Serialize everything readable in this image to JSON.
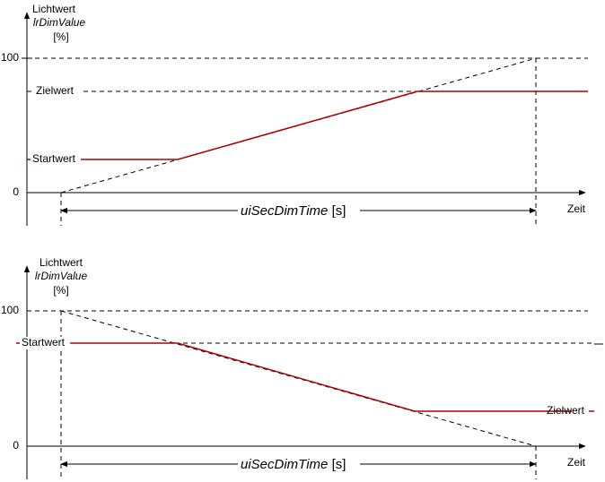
{
  "diagrams": [
    {
      "y_axis_label": "Lichtwert",
      "y_axis_variable": "lrDimValue",
      "y_axis_unit": "[%]",
      "level_max": "100",
      "level_zero": "0",
      "start_label": "Startwert",
      "target_label": "Zielwert",
      "duration_label": "uiSecDimTime",
      "duration_unit": "[s]",
      "x_axis_label": "Zeit"
    },
    {
      "y_axis_label": "Lichtwert",
      "y_axis_variable": "lrDimValue",
      "y_axis_unit": "[%]",
      "level_max": "100",
      "level_zero": "0",
      "start_label": "Startwert",
      "target_label": "Zielwert",
      "duration_label": "uiSecDimTime",
      "duration_unit": "[s]",
      "x_axis_label": "Zeit"
    }
  ]
}
